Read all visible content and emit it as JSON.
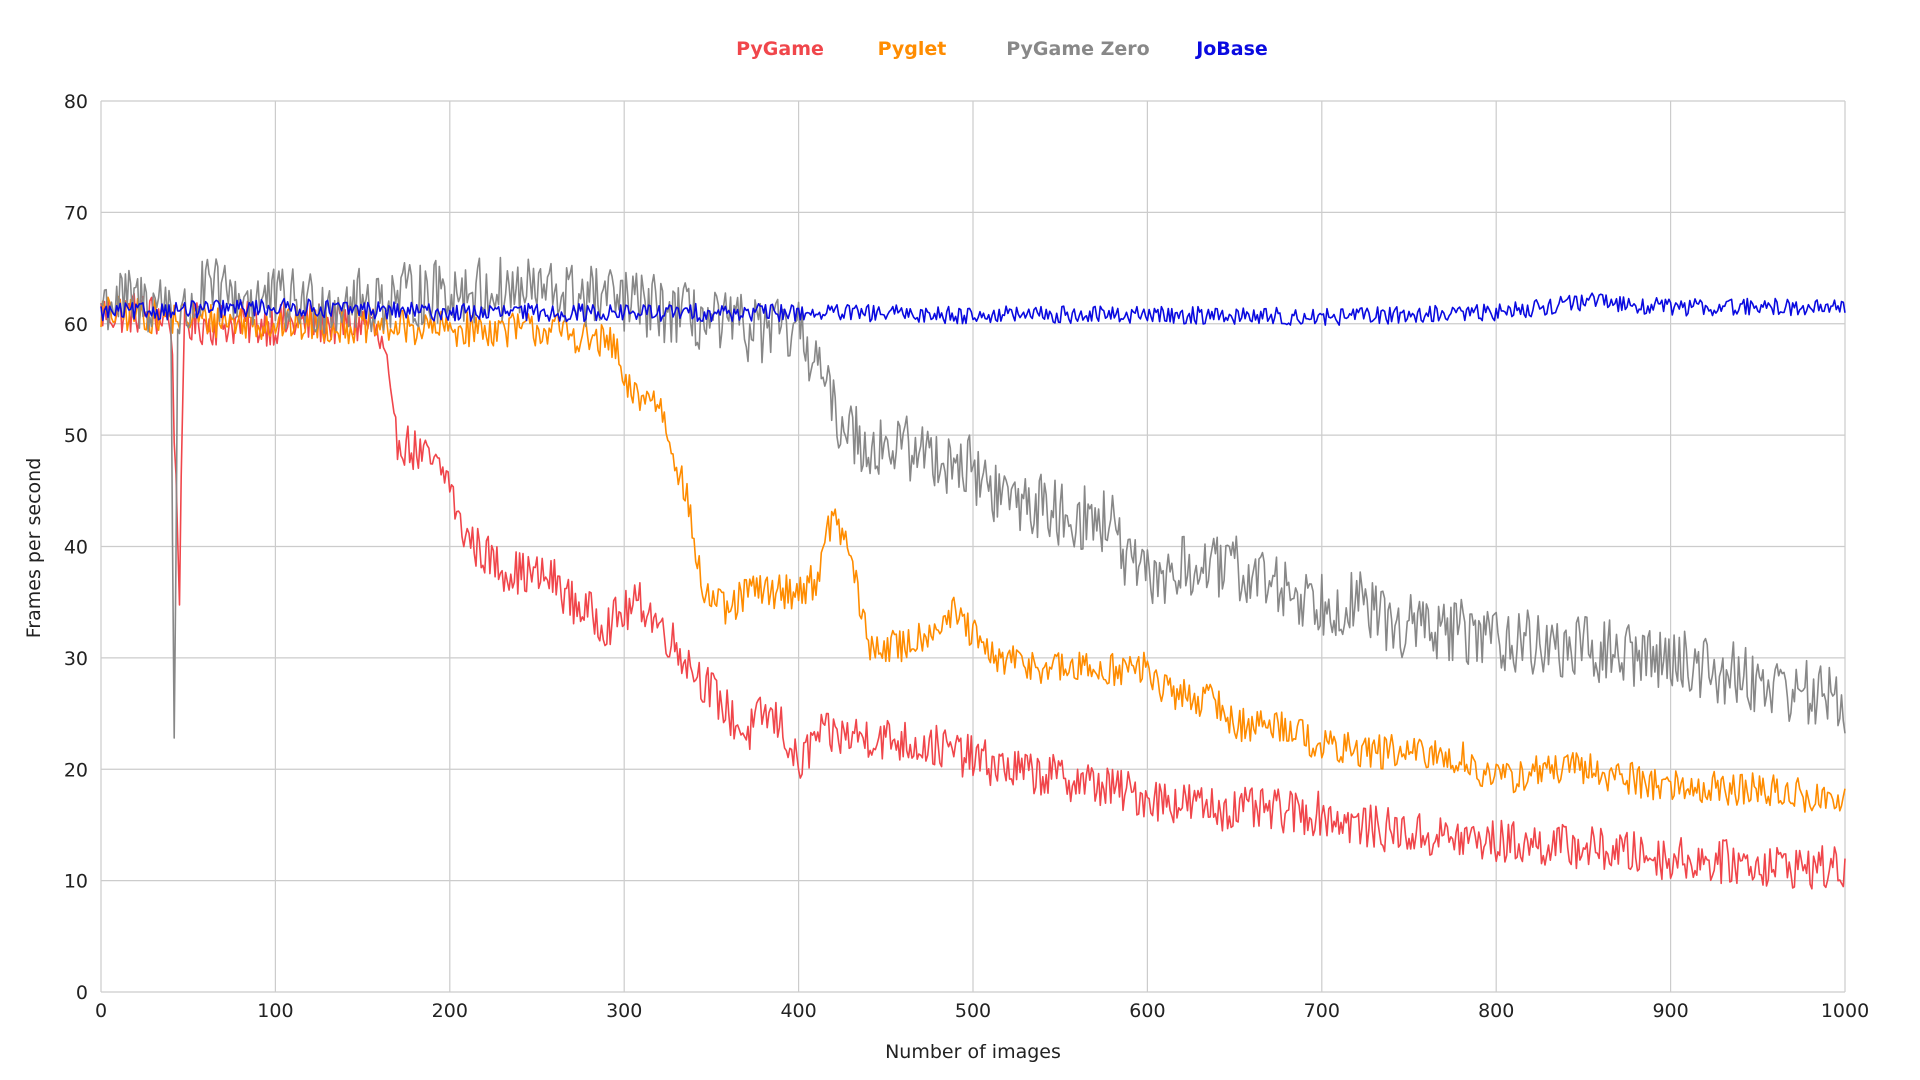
{
  "chart_data": {
    "type": "line",
    "title": "",
    "xlabel": "Number of images",
    "ylabel": "Frames per second",
    "xlim": [
      0,
      1000
    ],
    "ylim": [
      0,
      80
    ],
    "x_ticks": [
      0,
      100,
      200,
      300,
      400,
      500,
      600,
      700,
      800,
      900,
      1000
    ],
    "y_ticks": [
      0,
      10,
      20,
      30,
      40,
      50,
      60,
      70,
      80
    ],
    "grid": true,
    "legend_position": "top-center",
    "series": [
      {
        "name": "PyGame",
        "color": "#f0464b",
        "noise": 2.0,
        "points": [
          [
            0,
            61
          ],
          [
            20,
            61
          ],
          [
            40,
            60.5
          ],
          [
            43,
            46
          ],
          [
            45,
            36.5
          ],
          [
            48,
            60
          ],
          [
            80,
            60
          ],
          [
            120,
            60
          ],
          [
            155,
            60
          ],
          [
            163,
            57
          ],
          [
            168,
            50
          ],
          [
            185,
            48
          ],
          [
            200,
            46
          ],
          [
            205,
            42
          ],
          [
            215,
            40
          ],
          [
            230,
            38
          ],
          [
            260,
            37
          ],
          [
            270,
            35
          ],
          [
            290,
            33
          ],
          [
            310,
            35
          ],
          [
            320,
            33
          ],
          [
            340,
            29
          ],
          [
            360,
            25
          ],
          [
            370,
            23
          ],
          [
            380,
            25
          ],
          [
            390,
            24
          ],
          [
            400,
            20
          ],
          [
            410,
            23
          ],
          [
            440,
            23
          ],
          [
            480,
            22
          ],
          [
            520,
            20
          ],
          [
            560,
            19
          ],
          [
            600,
            17.5
          ],
          [
            640,
            16.5
          ],
          [
            700,
            16
          ],
          [
            720,
            15
          ],
          [
            760,
            14
          ],
          [
            800,
            13.5
          ],
          [
            850,
            13
          ],
          [
            900,
            12
          ],
          [
            950,
            11.5
          ],
          [
            1000,
            11
          ]
        ]
      },
      {
        "name": "Pyglet",
        "color": "#ff8c00",
        "noise": 1.6,
        "points": [
          [
            0,
            61
          ],
          [
            100,
            60
          ],
          [
            200,
            59.5
          ],
          [
            260,
            59.5
          ],
          [
            295,
            58
          ],
          [
            300,
            54
          ],
          [
            320,
            53
          ],
          [
            335,
            45
          ],
          [
            345,
            36
          ],
          [
            360,
            34
          ],
          [
            370,
            36
          ],
          [
            400,
            36
          ],
          [
            410,
            37
          ],
          [
            420,
            43
          ],
          [
            430,
            39
          ],
          [
            440,
            31
          ],
          [
            460,
            31
          ],
          [
            490,
            34
          ],
          [
            500,
            32
          ],
          [
            510,
            30
          ],
          [
            550,
            29
          ],
          [
            600,
            29
          ],
          [
            610,
            27
          ],
          [
            640,
            26
          ],
          [
            650,
            24
          ],
          [
            680,
            24
          ],
          [
            700,
            22
          ],
          [
            780,
            21
          ],
          [
            800,
            19
          ],
          [
            830,
            20
          ],
          [
            850,
            20
          ],
          [
            900,
            18.5
          ],
          [
            960,
            18
          ],
          [
            1000,
            17
          ]
        ]
      },
      {
        "name": "PyGame Zero",
        "color": "#888888",
        "noise": 3.0,
        "points": [
          [
            0,
            62
          ],
          [
            40,
            62
          ],
          [
            42,
            22.5
          ],
          [
            44,
            60
          ],
          [
            60,
            63
          ],
          [
            100,
            62
          ],
          [
            150,
            62
          ],
          [
            200,
            63
          ],
          [
            250,
            63
          ],
          [
            300,
            62
          ],
          [
            330,
            61
          ],
          [
            350,
            60
          ],
          [
            400,
            59
          ],
          [
            410,
            57
          ],
          [
            420,
            52
          ],
          [
            440,
            49
          ],
          [
            460,
            49
          ],
          [
            480,
            48
          ],
          [
            500,
            47
          ],
          [
            510,
            45
          ],
          [
            550,
            43
          ],
          [
            580,
            42
          ],
          [
            590,
            38
          ],
          [
            600,
            37
          ],
          [
            620,
            38
          ],
          [
            650,
            38
          ],
          [
            700,
            35
          ],
          [
            720,
            35
          ],
          [
            740,
            33
          ],
          [
            800,
            32
          ],
          [
            830,
            31
          ],
          [
            900,
            30
          ],
          [
            950,
            28
          ],
          [
            1000,
            26
          ]
        ]
      },
      {
        "name": "JoBase",
        "color": "#0a0ae0",
        "noise": 0.8,
        "points": [
          [
            0,
            61
          ],
          [
            100,
            61.5
          ],
          [
            200,
            61
          ],
          [
            300,
            61
          ],
          [
            400,
            61
          ],
          [
            500,
            60.8
          ],
          [
            600,
            60.8
          ],
          [
            700,
            60.6
          ],
          [
            800,
            61
          ],
          [
            850,
            62
          ],
          [
            900,
            61.5
          ],
          [
            1000,
            61.5
          ]
        ]
      }
    ]
  }
}
